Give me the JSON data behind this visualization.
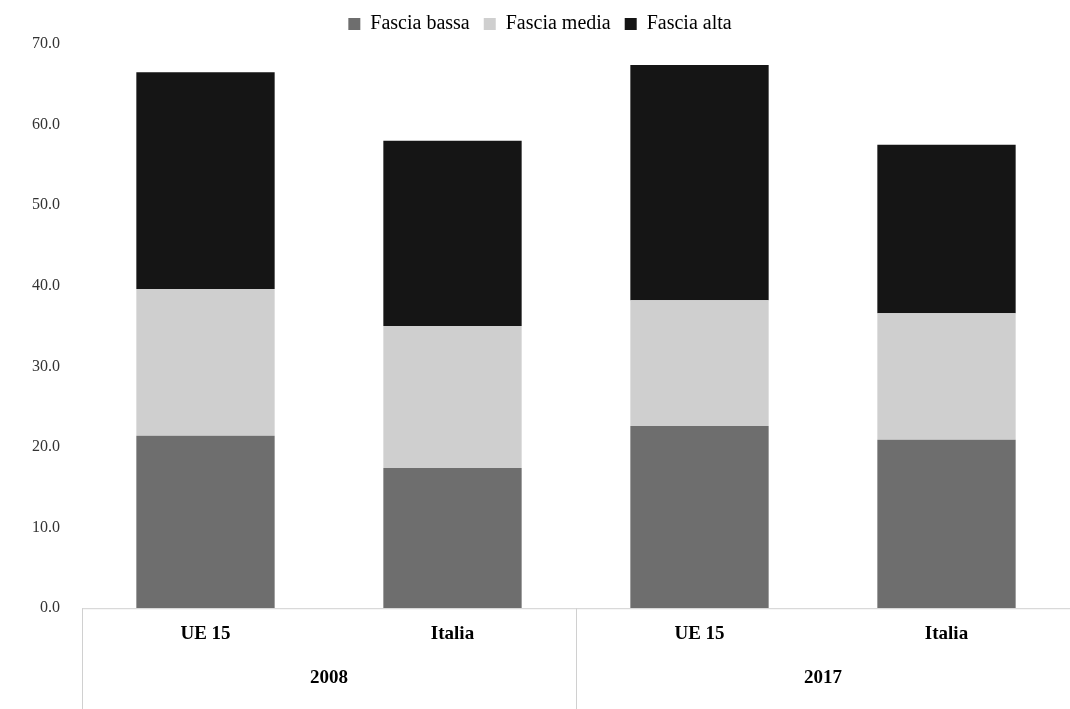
{
  "chart_data": {
    "type": "bar",
    "stacked": true,
    "categories": [
      "UE 15",
      "Italia",
      "UE 15",
      "Italia"
    ],
    "series": [
      {
        "name": "Fascia bassa",
        "color": "#6e6e6e",
        "values": [
          21.4,
          17.4,
          22.6,
          20.9
        ]
      },
      {
        "name": "Fascia media",
        "color": "#cfcfcf",
        "values": [
          18.2,
          17.6,
          15.6,
          15.7
        ]
      },
      {
        "name": "Fascia alta",
        "color": "#151515",
        "values": [
          26.9,
          23.0,
          29.2,
          20.9
        ]
      }
    ],
    "annotations": [
      "2008",
      "2017"
    ],
    "ylim": [
      0,
      70
    ],
    "yticks": [
      {
        "value": 0,
        "label": "0.0"
      },
      {
        "value": 10,
        "label": "10.0"
      },
      {
        "value": 20,
        "label": "20.0"
      },
      {
        "value": 30,
        "label": "30.0"
      },
      {
        "value": 40,
        "label": "40.0"
      },
      {
        "value": 50,
        "label": "50.0"
      },
      {
        "value": 60,
        "label": "60.0"
      },
      {
        "value": 70,
        "label": "70.0"
      }
    ],
    "grid": false,
    "legend": "top"
  }
}
